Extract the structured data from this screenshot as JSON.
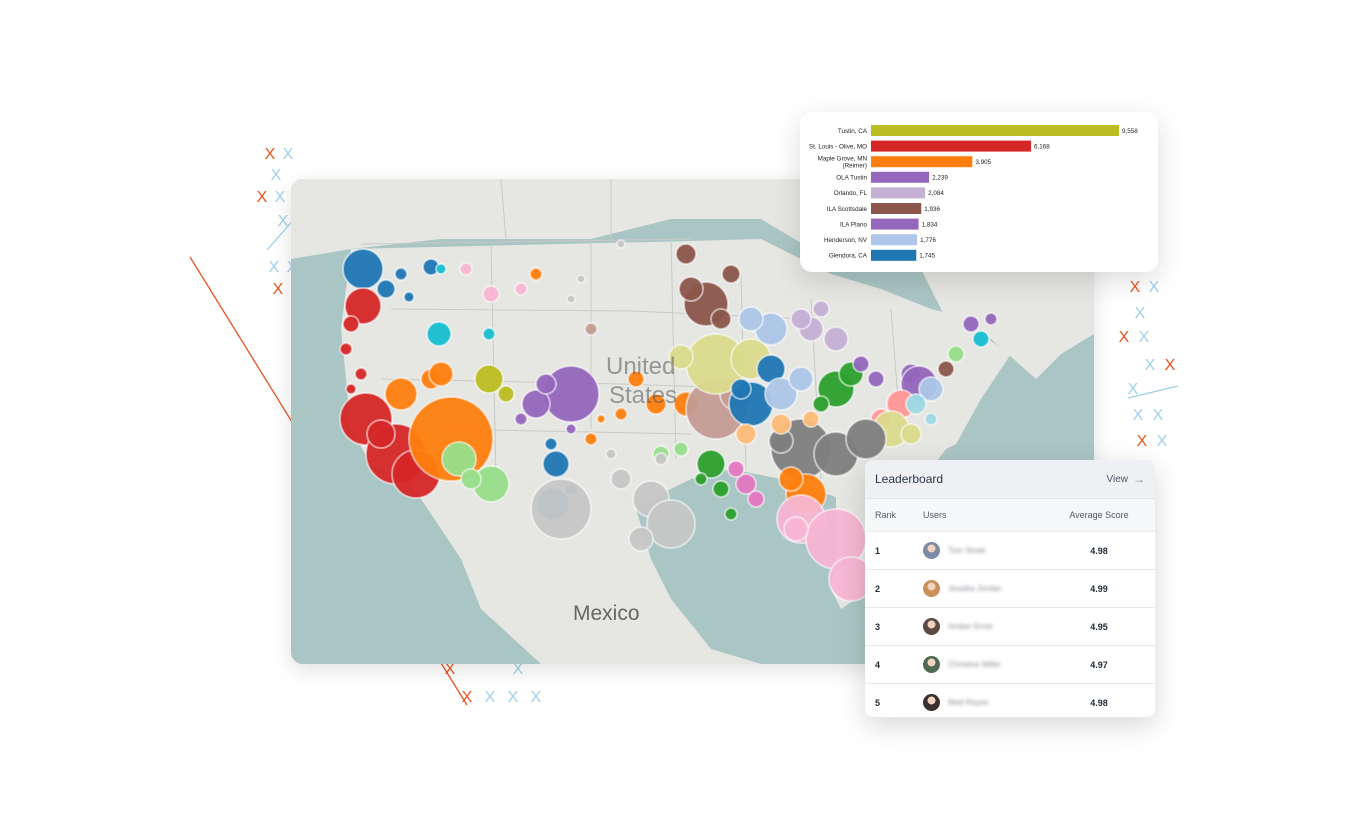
{
  "map": {
    "country_label_1": "United",
    "country_label_2": "States",
    "mexico_label": "Mexico"
  },
  "bar_chart": {
    "chart_data": {
      "type": "bar",
      "orientation": "horizontal",
      "categories": [
        "Tustin, CA",
        "St. Louis - Olive, MO",
        "Maple Grove, MN (Reimer)",
        "OLA Tustin",
        "Orlando, FL",
        "ILA Scottsdale",
        "ILA Plano",
        "Henderson, NV",
        "Glendora, CA"
      ],
      "category_lines": [
        [
          "Tustin, CA"
        ],
        [
          "St. Louis - Olive, MO"
        ],
        [
          "Maple Grove, MN",
          "(Reimer)"
        ],
        [
          "OLA Tustin"
        ],
        [
          "Orlando, FL"
        ],
        [
          "ILA Scottsdale"
        ],
        [
          "ILA Plano"
        ],
        [
          "Henderson, NV"
        ],
        [
          "Glendora, CA"
        ]
      ],
      "values": [
        9558,
        6168,
        3905,
        2239,
        2084,
        1936,
        1834,
        1776,
        1745
      ],
      "value_labels": [
        "9,558",
        "6,168",
        "3,905",
        "2,239",
        "2,084",
        "1,936",
        "1,834",
        "1,776",
        "1,745"
      ],
      "colors": [
        "#bcbd22",
        "#d62728",
        "#ff7f0e",
        "#9467bd",
        "#c5b0d5",
        "#8c564b",
        "#9467bd",
        "#aec7e8",
        "#1f77b4"
      ],
      "xlim": [
        0,
        9558
      ],
      "grid": false,
      "legend": "none"
    }
  },
  "leaderboard": {
    "title": "Leaderboard",
    "view_label": "View",
    "columns": {
      "rank": "Rank",
      "users": "Users",
      "score": "Average Score"
    },
    "rows": [
      {
        "rank": "1",
        "name": "Tom Sinak",
        "score": "4.98",
        "avatar_color": "#7d8aa3"
      },
      {
        "rank": "2",
        "name": "Jessika Jordan",
        "score": "4.99",
        "avatar_color": "#c9905a"
      },
      {
        "rank": "3",
        "name": "Amber Ernst",
        "score": "4.95",
        "avatar_color": "#5c4a44"
      },
      {
        "rank": "4",
        "name": "Christine Miller",
        "score": "4.97",
        "avatar_color": "#4f6a54"
      },
      {
        "rank": "5",
        "name": "Matt Reyes",
        "score": "4.98",
        "avatar_color": "#3a3030"
      }
    ]
  },
  "decor": {
    "x_glyph": "X",
    "accent_orange": "#e8541e",
    "accent_blue": "#9fd0ea"
  }
}
